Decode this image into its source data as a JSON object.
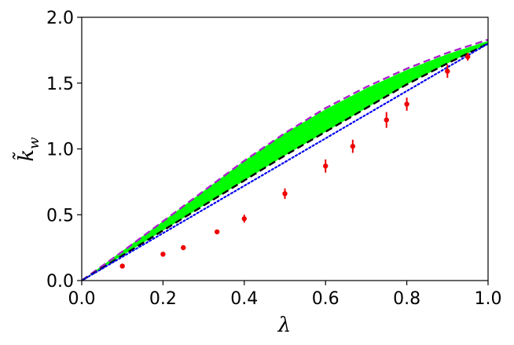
{
  "chart_data": {
    "type": "scatter",
    "title": "",
    "xlabel": "λ",
    "ylabel": "k̃",
    "ylabel_sub": "w",
    "xlim": [
      0.0,
      1.0
    ],
    "ylim": [
      0.0,
      2.0
    ],
    "xticks": [
      "0.0",
      "0.2",
      "0.4",
      "0.6",
      "0.8",
      "1.0"
    ],
    "yticks": [
      "0.0",
      "0.5",
      "1.0",
      "1.5",
      "2.0"
    ],
    "xtick_values": [
      0.0,
      0.2,
      0.4,
      0.6,
      0.8,
      1.0
    ],
    "ytick_values": [
      0.0,
      0.5,
      1.0,
      1.5,
      2.0
    ],
    "grid": false,
    "legend": "none",
    "band": {
      "name": "",
      "color": "#00ff00",
      "x": [
        0.0,
        0.1,
        0.2,
        0.3,
        0.4,
        0.5,
        0.6,
        0.7,
        0.8,
        0.9,
        1.0
      ],
      "upper": [
        0.0,
        0.225,
        0.45,
        0.68,
        0.91,
        1.12,
        1.3,
        1.46,
        1.6,
        1.72,
        1.82
      ],
      "lower": [
        0.0,
        0.19,
        0.38,
        0.57,
        0.76,
        0.95,
        1.13,
        1.31,
        1.49,
        1.65,
        1.8
      ]
    },
    "series": [
      {
        "style": "dashed",
        "color": "#aa22cc",
        "x": [
          0.0,
          0.1,
          0.2,
          0.3,
          0.4,
          0.5,
          0.6,
          0.7,
          0.8,
          0.9,
          1.0
        ],
        "y": [
          0.0,
          0.22,
          0.45,
          0.68,
          0.91,
          1.12,
          1.31,
          1.47,
          1.61,
          1.73,
          1.83
        ]
      },
      {
        "style": "dashed",
        "color": "#000000",
        "x": [
          0.0,
          0.1,
          0.2,
          0.3,
          0.4,
          0.5,
          0.6,
          0.7,
          0.8,
          0.9,
          1.0
        ],
        "y": [
          0.0,
          0.19,
          0.38,
          0.57,
          0.76,
          0.95,
          1.13,
          1.31,
          1.49,
          1.65,
          1.8
        ]
      },
      {
        "style": "dotted",
        "color": "#0000ee",
        "x": [
          0.0,
          1.0
        ],
        "y": [
          0.0,
          1.8
        ]
      }
    ],
    "points": {
      "color": "#ee0000",
      "x": [
        0.1,
        0.2,
        0.25,
        0.333,
        0.4,
        0.5,
        0.6,
        0.667,
        0.75,
        0.8,
        0.9,
        0.95
      ],
      "y": [
        0.11,
        0.2,
        0.25,
        0.37,
        0.47,
        0.66,
        0.87,
        1.02,
        1.22,
        1.34,
        1.59,
        1.7
      ],
      "err": [
        0.0,
        0.0,
        0.0,
        0.0,
        0.03,
        0.04,
        0.05,
        0.05,
        0.06,
        0.05,
        0.05,
        0.03
      ]
    }
  }
}
